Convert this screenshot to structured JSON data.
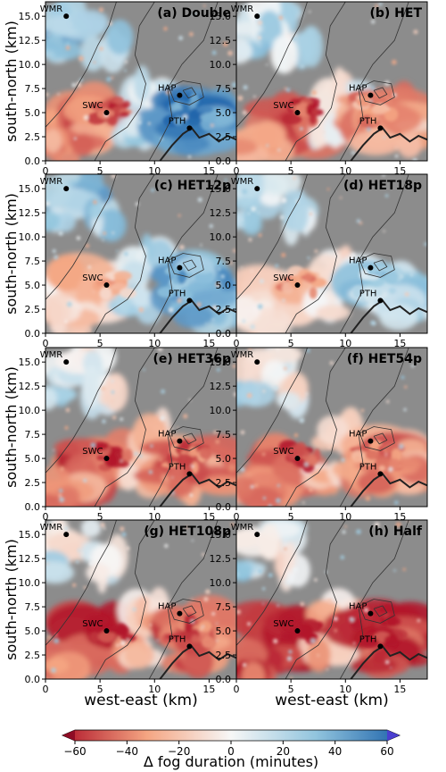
{
  "chart_data": {
    "type": "heatmap",
    "xlabel": "west-east (km)",
    "ylabel": "south-north (km)",
    "xlim": [
      0,
      17.5
    ],
    "ylim": [
      0,
      16.5
    ],
    "xticks": [
      0,
      5,
      10,
      15
    ],
    "yticks": [
      "0.0",
      "2.5",
      "5.0",
      "7.5",
      "10.0",
      "12.5",
      "15.0"
    ],
    "colorbar": {
      "label": "Δ fog duration (minutes)",
      "ticks": [
        -60,
        -40,
        -20,
        0,
        20,
        40,
        60
      ],
      "min": -60,
      "max": 60,
      "cmap": "coolwarm",
      "colors": [
        "#b2182b",
        "#f4a582",
        "#f7f7f7",
        "#92c5de",
        "#2166ac"
      ]
    },
    "background_color": "#8c8c8c",
    "sites": [
      {
        "name": "WMR",
        "x": 1.9,
        "y": 15.0
      },
      {
        "name": "SWC",
        "x": 5.6,
        "y": 5.0
      },
      {
        "name": "HAP",
        "x": 12.3,
        "y": 6.8
      },
      {
        "name": "PTH",
        "x": 13.2,
        "y": 3.4
      }
    ],
    "panels": [
      {
        "title": "(a) Double",
        "mean_change": "positive",
        "swc_change": -40,
        "hap_change": 50
      },
      {
        "title": "(b) HET",
        "mean_change": "mixed",
        "swc_change": -40,
        "hap_change": -30
      },
      {
        "title": "(c) HET12p",
        "mean_change": "positive",
        "swc_change": -15,
        "hap_change": 35
      },
      {
        "title": "(d) HET18p",
        "mean_change": "mixed",
        "swc_change": -20,
        "hap_change": 20
      },
      {
        "title": "(e) HET36p",
        "mean_change": "negative",
        "swc_change": -45,
        "hap_change": -40
      },
      {
        "title": "(f) HET54p",
        "mean_change": "negative",
        "swc_change": -40,
        "hap_change": -35
      },
      {
        "title": "(g) HET108p",
        "mean_change": "negative",
        "swc_change": -50,
        "hap_change": -45
      },
      {
        "title": "(h) Half",
        "mean_change": "negative",
        "swc_change": -60,
        "hap_change": -60
      }
    ]
  }
}
